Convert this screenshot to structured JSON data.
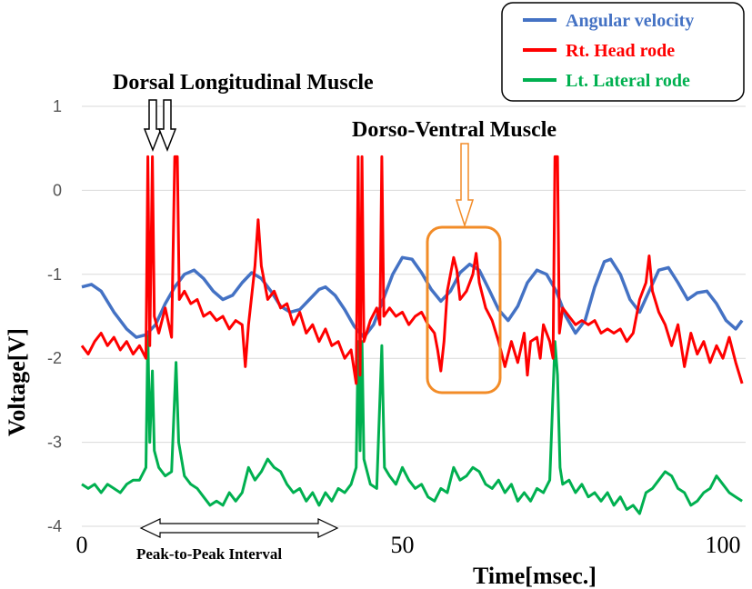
{
  "chart_data": {
    "type": "line",
    "xlabel": "Time[msec.]",
    "ylabel": "Voltage[V]",
    "xlim": [
      0,
      100
    ],
    "ylim": [
      -4,
      1
    ],
    "x_ticks": [
      "0",
      "50",
      "100"
    ],
    "y_ticks": [
      "1",
      "0",
      "-1",
      "-2",
      "-3",
      "-4"
    ],
    "grid": "horizontal",
    "legend_position": "top-right",
    "series": [
      {
        "name": "Angular velocity",
        "color": "#4472C4",
        "points": [
          [
            0,
            -1.15
          ],
          [
            1.5,
            -1.12
          ],
          [
            3,
            -1.2
          ],
          [
            5,
            -1.45
          ],
          [
            7,
            -1.65
          ],
          [
            8.5,
            -1.75
          ],
          [
            10,
            -1.72
          ],
          [
            11.5,
            -1.6
          ],
          [
            13,
            -1.35
          ],
          [
            14.5,
            -1.15
          ],
          [
            16,
            -1.0
          ],
          [
            17.5,
            -0.95
          ],
          [
            19,
            -1.05
          ],
          [
            20.5,
            -1.2
          ],
          [
            22,
            -1.3
          ],
          [
            23.5,
            -1.25
          ],
          [
            25,
            -1.1
          ],
          [
            26.5,
            -0.98
          ],
          [
            28,
            -1.05
          ],
          [
            29.5,
            -1.2
          ],
          [
            31,
            -1.38
          ],
          [
            32.5,
            -1.45
          ],
          [
            34,
            -1.42
          ],
          [
            35.5,
            -1.3
          ],
          [
            37,
            -1.18
          ],
          [
            38,
            -1.15
          ],
          [
            39.5,
            -1.25
          ],
          [
            41,
            -1.42
          ],
          [
            42.5,
            -1.62
          ],
          [
            44,
            -1.75
          ],
          [
            45.5,
            -1.6
          ],
          [
            47,
            -1.3
          ],
          [
            48.5,
            -1.0
          ],
          [
            50,
            -0.8
          ],
          [
            51.5,
            -0.82
          ],
          [
            53,
            -0.98
          ],
          [
            54.5,
            -1.18
          ],
          [
            56,
            -1.32
          ],
          [
            57.5,
            -1.2
          ],
          [
            59,
            -0.98
          ],
          [
            60.5,
            -0.88
          ],
          [
            62,
            -0.95
          ],
          [
            63.5,
            -1.18
          ],
          [
            65,
            -1.42
          ],
          [
            66.5,
            -1.55
          ],
          [
            68,
            -1.38
          ],
          [
            69.5,
            -1.1
          ],
          [
            71,
            -0.95
          ],
          [
            72.5,
            -1.0
          ],
          [
            74,
            -1.2
          ],
          [
            75.5,
            -1.5
          ],
          [
            77,
            -1.7
          ],
          [
            78.5,
            -1.55
          ],
          [
            80,
            -1.15
          ],
          [
            81.5,
            -0.85
          ],
          [
            82.5,
            -0.82
          ],
          [
            84,
            -1.0
          ],
          [
            85.5,
            -1.3
          ],
          [
            87,
            -1.45
          ],
          [
            88.5,
            -1.2
          ],
          [
            90,
            -0.95
          ],
          [
            91.5,
            -0.92
          ],
          [
            93,
            -1.1
          ],
          [
            94.5,
            -1.3
          ],
          [
            96,
            -1.22
          ],
          [
            97.5,
            -1.2
          ],
          [
            99,
            -1.35
          ],
          [
            100.5,
            -1.55
          ],
          [
            102,
            -1.65
          ],
          [
            103,
            -1.55
          ]
        ]
      },
      {
        "name": "Rt. Head rode",
        "color": "#FF0000",
        "points": [
          [
            0,
            -1.85
          ],
          [
            1,
            -1.95
          ],
          [
            2,
            -1.8
          ],
          [
            3,
            -1.7
          ],
          [
            4,
            -1.85
          ],
          [
            5,
            -1.75
          ],
          [
            6,
            -1.9
          ],
          [
            7,
            -1.8
          ],
          [
            8,
            -1.95
          ],
          [
            9,
            -1.85
          ],
          [
            10,
            -2.0
          ],
          [
            10.3,
            0.4
          ],
          [
            10.6,
            -1.85
          ],
          [
            11,
            0.4
          ],
          [
            11.3,
            -1.5
          ],
          [
            12,
            -1.7
          ],
          [
            13,
            -1.4
          ],
          [
            14,
            -1.75
          ],
          [
            14.5,
            0.4
          ],
          [
            14.9,
            0.4
          ],
          [
            15.2,
            -1.3
          ],
          [
            16,
            -1.2
          ],
          [
            17,
            -1.35
          ],
          [
            18,
            -1.3
          ],
          [
            19,
            -1.5
          ],
          [
            20,
            -1.45
          ],
          [
            21,
            -1.55
          ],
          [
            22,
            -1.5
          ],
          [
            23,
            -1.65
          ],
          [
            24,
            -1.55
          ],
          [
            25,
            -1.6
          ],
          [
            25.5,
            -2.1
          ],
          [
            26,
            -1.6
          ],
          [
            27,
            -0.9
          ],
          [
            27.5,
            -0.35
          ],
          [
            28,
            -0.9
          ],
          [
            28.5,
            -1.1
          ],
          [
            29,
            -1.3
          ],
          [
            30,
            -1.2
          ],
          [
            31,
            -1.4
          ],
          [
            32,
            -1.35
          ],
          [
            33,
            -1.6
          ],
          [
            34,
            -1.45
          ],
          [
            35,
            -1.7
          ],
          [
            36,
            -1.6
          ],
          [
            37,
            -1.8
          ],
          [
            38,
            -1.65
          ],
          [
            39,
            -1.85
          ],
          [
            40,
            -1.8
          ],
          [
            41,
            -2.0
          ],
          [
            42,
            -1.9
          ],
          [
            42.8,
            -2.3
          ],
          [
            43.1,
            0.4
          ],
          [
            43.4,
            -2.2
          ],
          [
            43.7,
            0.4
          ],
          [
            44,
            -1.8
          ],
          [
            45,
            -1.55
          ],
          [
            46,
            -1.4
          ],
          [
            46.5,
            -1.6
          ],
          [
            46.8,
            0.4
          ],
          [
            47.1,
            -1.5
          ],
          [
            48,
            -1.4
          ],
          [
            49,
            -1.5
          ],
          [
            50,
            -1.45
          ],
          [
            51,
            -1.6
          ],
          [
            52,
            -1.5
          ],
          [
            53,
            -1.45
          ],
          [
            54,
            -1.6
          ],
          [
            55,
            -1.7
          ],
          [
            55.5,
            -1.9
          ],
          [
            56,
            -2.15
          ],
          [
            56.5,
            -1.8
          ],
          [
            57,
            -1.2
          ],
          [
            58,
            -0.8
          ],
          [
            58.5,
            -0.95
          ],
          [
            59,
            -1.3
          ],
          [
            60,
            -1.2
          ],
          [
            61,
            -1.0
          ],
          [
            61.5,
            -0.75
          ],
          [
            62,
            -1.1
          ],
          [
            63,
            -1.4
          ],
          [
            64,
            -1.55
          ],
          [
            65,
            -1.8
          ],
          [
            66,
            -2.1
          ],
          [
            67,
            -1.8
          ],
          [
            68,
            -2.05
          ],
          [
            69,
            -1.7
          ],
          [
            69.5,
            -2.2
          ],
          [
            70,
            -1.8
          ],
          [
            71,
            -1.75
          ],
          [
            71.5,
            -2.0
          ],
          [
            72,
            -1.6
          ],
          [
            73,
            -1.8
          ],
          [
            73.5,
            -2.0
          ],
          [
            73.8,
            0.4
          ],
          [
            74.2,
            0.4
          ],
          [
            74.5,
            -1.7
          ],
          [
            75,
            -1.4
          ],
          [
            76,
            -1.5
          ],
          [
            77,
            -1.6
          ],
          [
            78,
            -1.55
          ],
          [
            79,
            -1.6
          ],
          [
            80,
            -1.55
          ],
          [
            81,
            -1.7
          ],
          [
            82,
            -1.65
          ],
          [
            83,
            -1.7
          ],
          [
            84,
            -1.65
          ],
          [
            85,
            -1.8
          ],
          [
            86,
            -1.7
          ],
          [
            87,
            -1.3
          ],
          [
            88,
            -1.1
          ],
          [
            88.5,
            -0.78
          ],
          [
            89,
            -1.2
          ],
          [
            90,
            -1.45
          ],
          [
            91,
            -1.6
          ],
          [
            92,
            -1.85
          ],
          [
            93,
            -1.6
          ],
          [
            94,
            -2.1
          ],
          [
            95,
            -1.7
          ],
          [
            96,
            -1.95
          ],
          [
            97,
            -1.8
          ],
          [
            98,
            -2.05
          ],
          [
            99,
            -1.85
          ],
          [
            100,
            -2.0
          ],
          [
            101,
            -1.75
          ],
          [
            102,
            -2.05
          ],
          [
            103,
            -2.3
          ]
        ]
      },
      {
        "name": "Lt. Lateral rode",
        "color": "#00B050",
        "points": [
          [
            0,
            -3.5
          ],
          [
            1,
            -3.55
          ],
          [
            2,
            -3.5
          ],
          [
            3,
            -3.6
          ],
          [
            4,
            -3.5
          ],
          [
            5,
            -3.55
          ],
          [
            6,
            -3.6
          ],
          [
            7,
            -3.5
          ],
          [
            8,
            -3.45
          ],
          [
            9,
            -3.45
          ],
          [
            10,
            -3.3
          ],
          [
            10.3,
            -1.7
          ],
          [
            10.6,
            -3.0
          ],
          [
            11,
            -2.15
          ],
          [
            11.3,
            -3.1
          ],
          [
            12,
            -3.3
          ],
          [
            13,
            -3.4
          ],
          [
            14,
            -3.35
          ],
          [
            14.7,
            -2.05
          ],
          [
            15.1,
            -3.0
          ],
          [
            16,
            -3.4
          ],
          [
            17,
            -3.5
          ],
          [
            18,
            -3.55
          ],
          [
            19,
            -3.65
          ],
          [
            20,
            -3.75
          ],
          [
            21,
            -3.7
          ],
          [
            22,
            -3.75
          ],
          [
            23,
            -3.6
          ],
          [
            24,
            -3.7
          ],
          [
            25,
            -3.6
          ],
          [
            26,
            -3.3
          ],
          [
            27,
            -3.45
          ],
          [
            28,
            -3.35
          ],
          [
            29,
            -3.2
          ],
          [
            30,
            -3.3
          ],
          [
            31,
            -3.35
          ],
          [
            32,
            -3.5
          ],
          [
            33,
            -3.6
          ],
          [
            34,
            -3.55
          ],
          [
            35,
            -3.7
          ],
          [
            36,
            -3.6
          ],
          [
            37,
            -3.75
          ],
          [
            38,
            -3.6
          ],
          [
            39,
            -3.7
          ],
          [
            40,
            -3.55
          ],
          [
            41,
            -3.6
          ],
          [
            42,
            -3.5
          ],
          [
            42.8,
            -3.3
          ],
          [
            43.1,
            -1.8
          ],
          [
            43.4,
            -3.1
          ],
          [
            43.7,
            -1.8
          ],
          [
            44,
            -3.2
          ],
          [
            45,
            -3.5
          ],
          [
            46,
            -3.55
          ],
          [
            46.8,
            -1.85
          ],
          [
            47.2,
            -3.3
          ],
          [
            48,
            -3.4
          ],
          [
            49,
            -3.5
          ],
          [
            50,
            -3.3
          ],
          [
            51,
            -3.45
          ],
          [
            52,
            -3.55
          ],
          [
            53,
            -3.5
          ],
          [
            54,
            -3.65
          ],
          [
            55,
            -3.7
          ],
          [
            56,
            -3.55
          ],
          [
            57,
            -3.6
          ],
          [
            58,
            -3.3
          ],
          [
            59,
            -3.45
          ],
          [
            60,
            -3.4
          ],
          [
            61,
            -3.3
          ],
          [
            62,
            -3.35
          ],
          [
            63,
            -3.5
          ],
          [
            64,
            -3.55
          ],
          [
            65,
            -3.45
          ],
          [
            66,
            -3.6
          ],
          [
            67,
            -3.5
          ],
          [
            68,
            -3.7
          ],
          [
            69,
            -3.6
          ],
          [
            70,
            -3.7
          ],
          [
            71,
            -3.55
          ],
          [
            72,
            -3.6
          ],
          [
            73,
            -3.45
          ],
          [
            73.8,
            -1.8
          ],
          [
            74.2,
            -2.2
          ],
          [
            74.6,
            -3.3
          ],
          [
            75,
            -3.5
          ],
          [
            76,
            -3.45
          ],
          [
            77,
            -3.6
          ],
          [
            78,
            -3.5
          ],
          [
            79,
            -3.65
          ],
          [
            80,
            -3.6
          ],
          [
            81,
            -3.7
          ],
          [
            82,
            -3.6
          ],
          [
            83,
            -3.75
          ],
          [
            84,
            -3.65
          ],
          [
            85,
            -3.8
          ],
          [
            86,
            -3.75
          ],
          [
            87,
            -3.85
          ],
          [
            88,
            -3.6
          ],
          [
            89,
            -3.55
          ],
          [
            90,
            -3.45
          ],
          [
            91,
            -3.35
          ],
          [
            92,
            -3.4
          ],
          [
            93,
            -3.55
          ],
          [
            94,
            -3.6
          ],
          [
            95,
            -3.75
          ],
          [
            96,
            -3.7
          ],
          [
            97,
            -3.6
          ],
          [
            98,
            -3.55
          ],
          [
            99,
            -3.4
          ],
          [
            100,
            -3.5
          ],
          [
            101,
            -3.6
          ],
          [
            102,
            -3.65
          ],
          [
            103,
            -3.7
          ]
        ]
      }
    ],
    "annotations": {
      "dorsal": "Dorsal Longitudinal Muscle",
      "ventral": "Dorso-Ventral Muscle",
      "interval": "Peak-to-Peak Interval"
    }
  }
}
